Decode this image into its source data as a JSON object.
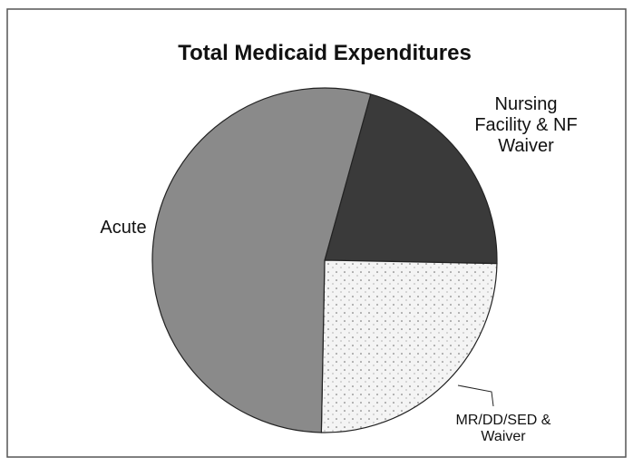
{
  "chart_data": {
    "type": "pie",
    "title": "Total Medicaid Expenditures",
    "categories": [
      "Nursing Facility & NF Waiver",
      "MR/DD/SED & Waiver",
      "Acute"
    ],
    "values": [
      21,
      25,
      54
    ],
    "colors": [
      "#3a3a3a",
      "#f2f2f2",
      "#8a8a8a"
    ]
  }
}
